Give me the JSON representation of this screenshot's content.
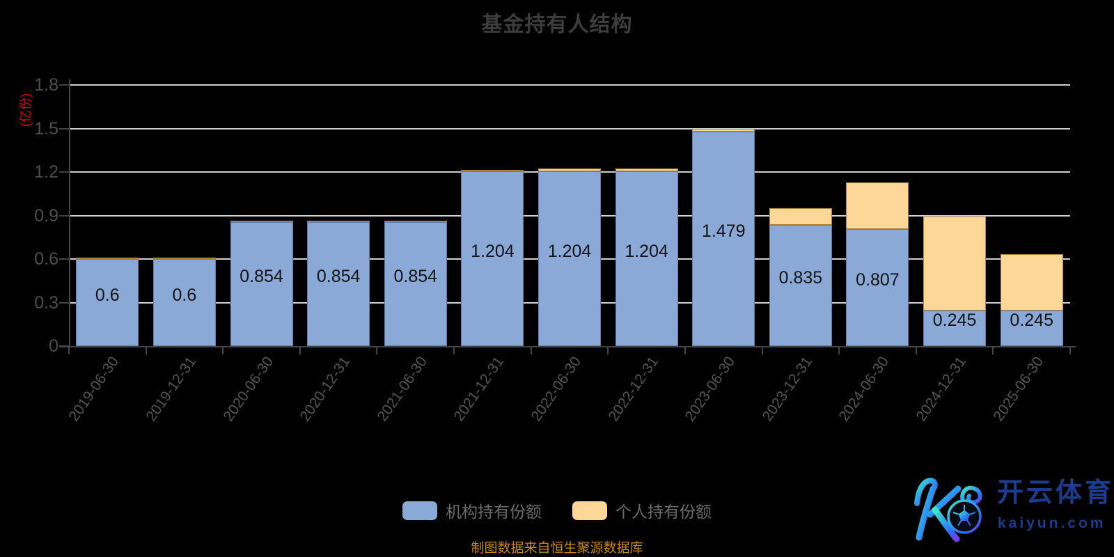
{
  "title": "基金持有人结构",
  "y_axis": {
    "unit_label": "(亿份)",
    "ticks": [
      "0",
      "0.3",
      "0.6",
      "0.9",
      "1.2",
      "1.5",
      "1.8"
    ],
    "max": 1.8,
    "interval": 0.3
  },
  "legend": {
    "items": [
      {
        "label": "机构持有份额",
        "color": "#8AA9D6"
      },
      {
        "label": "个人持有份额",
        "color": "#FDD798"
      }
    ]
  },
  "source_note": "制图数据来自恒生聚源数据库",
  "watermark": {
    "cn": "开云体育",
    "en": "kaiyun.com"
  },
  "chart_data": {
    "type": "bar",
    "stacked": true,
    "title": "基金持有人结构",
    "ylabel": "(亿份)",
    "ylim": [
      0,
      1.8
    ],
    "y_interval": 0.3,
    "grid": true,
    "legend_position": "bottom",
    "categories": [
      "2019-06-30",
      "2019-12-31",
      "2020-06-30",
      "2020-12-31",
      "2021-06-30",
      "2021-12-31",
      "2022-06-30",
      "2022-12-31",
      "2023-06-30",
      "2023-12-31",
      "2024-06-30",
      "2024-12-31",
      "2025-06-30"
    ],
    "series": [
      {
        "name": "机构持有份额",
        "color": "#8AA9D6",
        "values": [
          0.6,
          0.6,
          0.854,
          0.854,
          0.854,
          1.204,
          1.204,
          1.204,
          1.479,
          0.835,
          0.807,
          0.245,
          0.245
        ]
      },
      {
        "name": "个人持有份额",
        "color": "#FDD798",
        "values_estimated": true,
        "values": [
          0.005,
          0.005,
          0.006,
          0.006,
          0.006,
          0.008,
          0.02,
          0.02,
          0.019,
          0.115,
          0.32,
          0.649,
          0.391
        ]
      }
    ],
    "bar_labels": [
      "0.6",
      "0.6",
      "0.854",
      "0.854",
      "0.854",
      "1.204",
      "1.204",
      "1.204",
      "1.479",
      "0.835",
      "0.807",
      "0.245",
      "0.245"
    ]
  },
  "colors": {
    "background": "#000000",
    "title": "#3d3d3d",
    "grid": "#cfcfcf",
    "axis": "#454545",
    "y_tick_label": "#4f4f4f",
    "x_tick_label": "#555555",
    "bar_label": "#141414",
    "legend_text": "#6b6b6b",
    "unit_label": "#e60000",
    "source_note": "#c9880e",
    "watermark_text": "#1c3c8f"
  }
}
